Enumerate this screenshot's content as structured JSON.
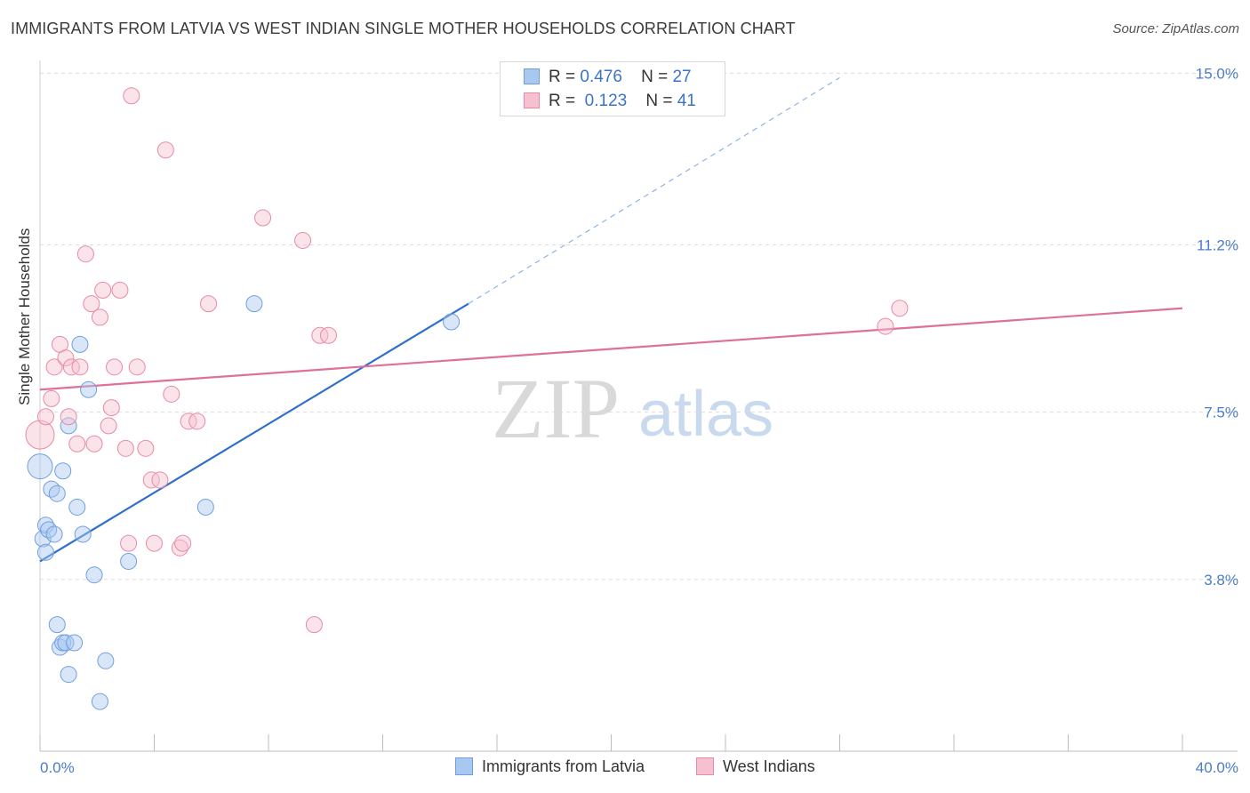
{
  "header": {
    "title": "IMMIGRANTS FROM LATVIA VS WEST INDIAN SINGLE MOTHER HOUSEHOLDS CORRELATION CHART",
    "source": "Source: ZipAtlas.com"
  },
  "legend": {
    "rows": [
      {
        "r_label": "R =",
        "r_value": "0.476",
        "n_label": "N =",
        "n_value": "27",
        "color": "#a9c8f0",
        "border": "#6f9fde"
      },
      {
        "r_label": "R =",
        "r_value": "0.123",
        "n_label": "N =",
        "n_value": "41",
        "color": "#f7c0d0",
        "border": "#e88aa6"
      }
    ]
  },
  "watermark": {
    "zip": "ZIP",
    "atlas": "atlas"
  },
  "chart_data": {
    "type": "scatter",
    "title": "IMMIGRANTS FROM LATVIA VS WEST INDIAN SINGLE MOTHER HOUSEHOLDS CORRELATION CHART",
    "xlabel": "",
    "ylabel": "Single Mother Households",
    "xlim": [
      0,
      40
    ],
    "ylim": [
      0,
      15.4
    ],
    "x_tick_labels": [
      "0.0%",
      "40.0%"
    ],
    "y_ticks": [
      3.8,
      7.5,
      11.2,
      15.0
    ],
    "y_tick_labels": [
      "3.8%",
      "7.5%",
      "11.2%",
      "15.0%"
    ],
    "grid": true,
    "legend_position": "bottom",
    "series": [
      {
        "name": "Immigrants from Latvia",
        "color": "#a9c8f0",
        "stroke": "#6f9fde",
        "trend_color": "#2f6fcc",
        "trend": {
          "x0": 0.0,
          "y0": 4.2,
          "x1": 15.0,
          "y1": 9.9,
          "dash_to_x": 28.0,
          "dash_to_y": 14.9
        },
        "points": [
          [
            0.0,
            6.3,
            14
          ],
          [
            0.1,
            4.7,
            9
          ],
          [
            0.2,
            4.4,
            9
          ],
          [
            0.2,
            5.0,
            9
          ],
          [
            0.3,
            4.9,
            9
          ],
          [
            0.5,
            4.8,
            9
          ],
          [
            0.4,
            5.8,
            9
          ],
          [
            0.6,
            5.7,
            9
          ],
          [
            0.8,
            6.2,
            9
          ],
          [
            1.0,
            7.2,
            9
          ],
          [
            1.4,
            9.0,
            9
          ],
          [
            1.7,
            8.0,
            9
          ],
          [
            1.3,
            5.4,
            9
          ],
          [
            1.5,
            4.8,
            9
          ],
          [
            1.9,
            3.9,
            9
          ],
          [
            3.1,
            4.2,
            9
          ],
          [
            0.6,
            2.8,
            9
          ],
          [
            0.7,
            2.3,
            9
          ],
          [
            0.8,
            2.4,
            9
          ],
          [
            0.9,
            2.4,
            9
          ],
          [
            1.2,
            2.4,
            9
          ],
          [
            1.0,
            1.7,
            9
          ],
          [
            2.3,
            2.0,
            9
          ],
          [
            2.1,
            1.1,
            9
          ],
          [
            5.8,
            5.4,
            9
          ],
          [
            7.5,
            9.9,
            9
          ],
          [
            14.4,
            9.5,
            9
          ]
        ]
      },
      {
        "name": "West Indians",
        "color": "#f7c0d0",
        "stroke": "#e88aa6",
        "trend_color": "#e0709a",
        "trend": {
          "x0": 0.0,
          "y0": 8.0,
          "x1": 40.0,
          "y1": 9.8
        },
        "points": [
          [
            0.0,
            7.0,
            16
          ],
          [
            0.2,
            7.4,
            9
          ],
          [
            0.4,
            7.8,
            9
          ],
          [
            0.5,
            8.5,
            9
          ],
          [
            0.7,
            9.0,
            9
          ],
          [
            0.9,
            8.7,
            9
          ],
          [
            1.0,
            7.4,
            9
          ],
          [
            1.1,
            8.5,
            9
          ],
          [
            1.4,
            8.5,
            9
          ],
          [
            1.3,
            6.8,
            9
          ],
          [
            1.6,
            11.0,
            9
          ],
          [
            1.8,
            9.9,
            9
          ],
          [
            1.9,
            6.8,
            9
          ],
          [
            2.1,
            9.6,
            9
          ],
          [
            2.2,
            10.2,
            9
          ],
          [
            2.4,
            7.2,
            9
          ],
          [
            2.5,
            7.6,
            9
          ],
          [
            2.6,
            8.5,
            9
          ],
          [
            2.8,
            10.2,
            9
          ],
          [
            3.0,
            6.7,
            9
          ],
          [
            3.1,
            4.6,
            9
          ],
          [
            3.2,
            14.5,
            9
          ],
          [
            3.4,
            8.5,
            9
          ],
          [
            3.7,
            6.7,
            9
          ],
          [
            3.9,
            6.0,
            9
          ],
          [
            4.0,
            4.6,
            9
          ],
          [
            4.2,
            6.0,
            9
          ],
          [
            4.4,
            13.3,
            9
          ],
          [
            4.6,
            7.9,
            9
          ],
          [
            4.9,
            4.5,
            9
          ],
          [
            5.0,
            4.6,
            9
          ],
          [
            5.2,
            7.3,
            9
          ],
          [
            5.5,
            7.3,
            9
          ],
          [
            5.9,
            9.9,
            9
          ],
          [
            7.8,
            11.8,
            9
          ],
          [
            9.2,
            11.3,
            9
          ],
          [
            9.8,
            9.2,
            9
          ],
          [
            10.1,
            9.2,
            9
          ],
          [
            9.6,
            2.8,
            9
          ],
          [
            29.6,
            9.4,
            9
          ],
          [
            30.1,
            9.8,
            9
          ]
        ]
      }
    ]
  }
}
